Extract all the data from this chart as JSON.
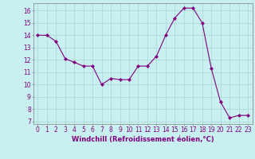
{
  "x": [
    0,
    1,
    2,
    3,
    4,
    5,
    6,
    7,
    8,
    9,
    10,
    11,
    12,
    13,
    14,
    15,
    16,
    17,
    18,
    19,
    20,
    21,
    22,
    23
  ],
  "y": [
    14,
    14,
    13.5,
    12.1,
    11.8,
    11.5,
    11.5,
    10.0,
    10.5,
    10.4,
    10.4,
    11.5,
    11.5,
    12.3,
    14.0,
    15.4,
    16.2,
    16.2,
    15.0,
    11.3,
    8.6,
    7.3,
    7.5,
    7.5
  ],
  "line_color": "#800080",
  "marker": "D",
  "marker_size": 2.0,
  "bg_color": "#c8f0f0",
  "grid_color": "#b0d8d8",
  "xlabel": "Windchill (Refroidissement éolien,°C)",
  "xlim": [
    -0.5,
    23.5
  ],
  "ylim": [
    6.8,
    16.6
  ],
  "yticks": [
    7,
    8,
    9,
    10,
    11,
    12,
    13,
    14,
    15,
    16
  ],
  "xticks": [
    0,
    1,
    2,
    3,
    4,
    5,
    6,
    7,
    8,
    9,
    10,
    11,
    12,
    13,
    14,
    15,
    16,
    17,
    18,
    19,
    20,
    21,
    22,
    23
  ],
  "xlabel_fontsize": 6.0,
  "tick_fontsize": 5.5
}
